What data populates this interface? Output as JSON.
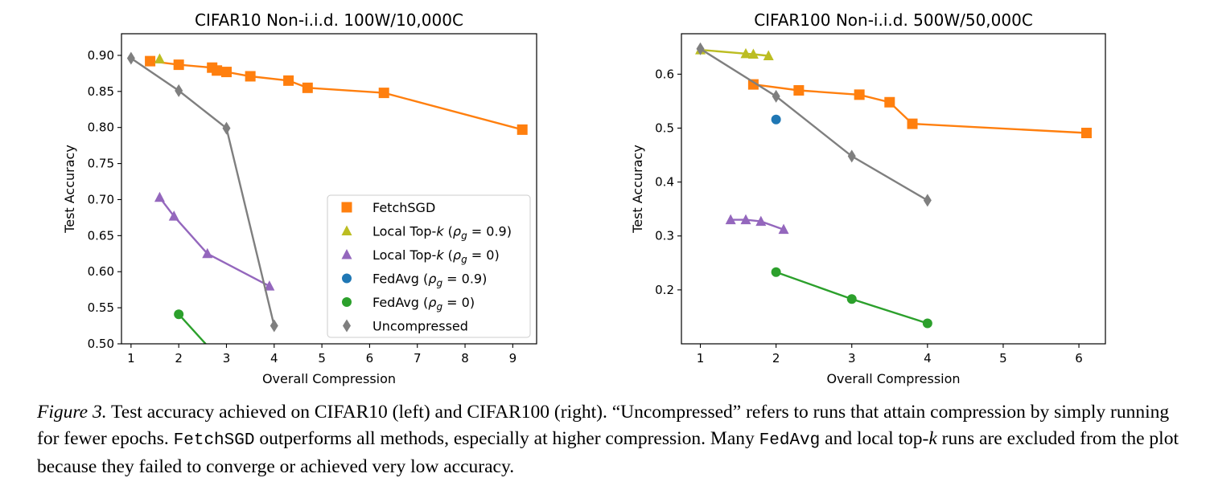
{
  "chart_data": [
    {
      "type": "line",
      "title": "CIFAR10 Non-i.i.d. 100W/10,000C",
      "xlabel": "Overall Compression",
      "ylabel": "Test Accuracy",
      "xlim": [
        0.8,
        9.5
      ],
      "ylim": [
        0.5,
        0.93
      ],
      "xticks": [
        1,
        2,
        3,
        4,
        5,
        6,
        7,
        8,
        9
      ],
      "xtick_labels": [
        "1",
        "2",
        "3",
        "4",
        "5",
        "6",
        "7",
        "8",
        "9"
      ],
      "yticks": [
        0.5,
        0.55,
        0.6,
        0.65,
        0.7,
        0.75,
        0.8,
        0.85,
        0.9
      ],
      "ytick_labels": [
        "0.50",
        "0.55",
        "0.60",
        "0.65",
        "0.70",
        "0.75",
        "0.80",
        "0.85",
        "0.90"
      ],
      "grid": false,
      "legend": {
        "position": "lower-right",
        "entries": [
          {
            "label": "FetchSGD",
            "color": "#ff7f0e",
            "marker": "square"
          },
          {
            "label": "Local Top-k (ρg = 0.9)",
            "color": "#bcbd22",
            "marker": "triangle"
          },
          {
            "label": "Local Top-k (ρg = 0)",
            "color": "#9467bd",
            "marker": "triangle"
          },
          {
            "label": "FedAvg (ρg = 0.9)",
            "color": "#1f77b4",
            "marker": "circle"
          },
          {
            "label": "FedAvg (ρg = 0)",
            "color": "#2ca02c",
            "marker": "circle"
          },
          {
            "label": "Uncompressed",
            "color": "#7f7f7f",
            "marker": "diamond"
          }
        ]
      },
      "series": [
        {
          "name": "FetchSGD",
          "color": "#ff7f0e",
          "marker": "square",
          "points": [
            [
              1.4,
              0.892
            ],
            [
              2.0,
              0.887
            ],
            [
              2.7,
              0.883
            ],
            [
              2.8,
              0.879
            ],
            [
              3.0,
              0.877
            ],
            [
              3.5,
              0.871
            ],
            [
              4.3,
              0.865
            ],
            [
              4.7,
              0.855
            ],
            [
              6.3,
              0.848
            ],
            [
              9.2,
              0.797
            ]
          ]
        },
        {
          "name": "Local Top-k (ρg = 0.9)",
          "color": "#bcbd22",
          "marker": "triangle",
          "points": [
            [
              1.6,
              0.895
            ]
          ]
        },
        {
          "name": "Local Top-k (ρg = 0)",
          "color": "#9467bd",
          "marker": "triangle",
          "points": [
            [
              1.6,
              0.703
            ],
            [
              1.9,
              0.677
            ],
            [
              2.6,
              0.625
            ],
            [
              3.9,
              0.58
            ]
          ]
        },
        {
          "name": "FedAvg (ρg = 0.9)",
          "color": "#1f77b4",
          "marker": "circle",
          "points": []
        },
        {
          "name": "FedAvg (ρg = 0)",
          "color": "#2ca02c",
          "marker": "circle",
          "points": [
            [
              2.0,
              0.541
            ],
            [
              2.7,
              0.49
            ]
          ]
        },
        {
          "name": "Uncompressed",
          "color": "#7f7f7f",
          "marker": "diamond",
          "points": [
            [
              1.0,
              0.896
            ],
            [
              2.0,
              0.851
            ],
            [
              3.0,
              0.799
            ],
            [
              4.0,
              0.525
            ]
          ]
        }
      ]
    },
    {
      "type": "line",
      "title": "CIFAR100 Non-i.i.d. 500W/50,000C",
      "xlabel": "Overall Compression",
      "ylabel": "Test Accuracy",
      "xlim": [
        0.75,
        6.35
      ],
      "ylim": [
        0.1,
        0.675
      ],
      "xticks": [
        1,
        2,
        3,
        4,
        5,
        6
      ],
      "xtick_labels": [
        "1",
        "2",
        "3",
        "4",
        "5",
        "6"
      ],
      "yticks": [
        0.2,
        0.3,
        0.4,
        0.5,
        0.6
      ],
      "ytick_labels": [
        "0.2",
        "0.3",
        "0.4",
        "0.5",
        "0.6"
      ],
      "grid": false,
      "series": [
        {
          "name": "FetchSGD",
          "color": "#ff7f0e",
          "marker": "square",
          "points": [
            [
              1.7,
              0.581
            ],
            [
              2.3,
              0.57
            ],
            [
              3.1,
              0.562
            ],
            [
              3.5,
              0.548
            ],
            [
              3.8,
              0.508
            ],
            [
              6.1,
              0.491
            ]
          ]
        },
        {
          "name": "Local Top-k (ρg = 0.9)",
          "color": "#bcbd22",
          "marker": "triangle",
          "points": [
            [
              1.0,
              0.645
            ],
            [
              1.6,
              0.638
            ],
            [
              1.7,
              0.637
            ],
            [
              1.9,
              0.634
            ]
          ]
        },
        {
          "name": "Local Top-k (ρg = 0)",
          "color": "#9467bd",
          "marker": "triangle",
          "points": [
            [
              1.4,
              0.33
            ],
            [
              1.6,
              0.33
            ],
            [
              1.8,
              0.327
            ],
            [
              2.1,
              0.312
            ]
          ]
        },
        {
          "name": "FedAvg (ρg = 0.9)",
          "color": "#1f77b4",
          "marker": "circle",
          "points": [
            [
              2.0,
              0.516
            ]
          ]
        },
        {
          "name": "FedAvg (ρg = 0)",
          "color": "#2ca02c",
          "marker": "circle",
          "points": [
            [
              2.0,
              0.233
            ],
            [
              3.0,
              0.183
            ],
            [
              4.0,
              0.138
            ]
          ]
        },
        {
          "name": "Uncompressed",
          "color": "#7f7f7f",
          "marker": "diamond",
          "points": [
            [
              1.0,
              0.647
            ],
            [
              2.0,
              0.559
            ],
            [
              3.0,
              0.448
            ],
            [
              4.0,
              0.366
            ]
          ]
        }
      ]
    }
  ],
  "caption": {
    "label": "Figure 3.",
    "segments": [
      {
        "text": " Test accuracy achieved on CIFAR10 (left) and CIFAR100 (right). “Uncompressed” refers to runs that attain compression by simply running for fewer epochs. ",
        "style": "normal"
      },
      {
        "text": "FetchSGD",
        "style": "mono"
      },
      {
        "text": " outperforms all methods, especially at higher compression. Many ",
        "style": "normal"
      },
      {
        "text": "FedAvg",
        "style": "mono"
      },
      {
        "text": " and local top-",
        "style": "normal"
      },
      {
        "text": "k",
        "style": "italic"
      },
      {
        "text": " runs are excluded from the plot because they failed to converge or achieved very low accuracy.",
        "style": "normal"
      }
    ]
  }
}
